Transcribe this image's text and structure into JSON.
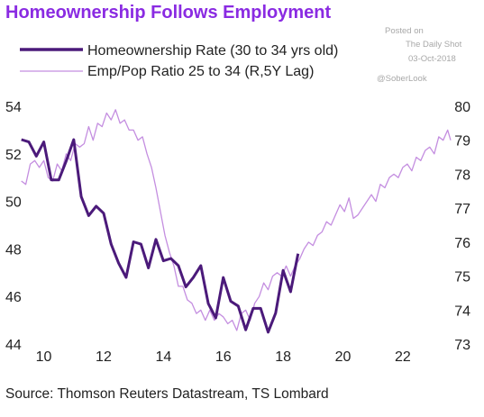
{
  "chart_data": {
    "type": "line",
    "title": "Homeownership Follows Employment",
    "source": "Source: Thomson Reuters Datastream, TS Lombard",
    "watermark": [
      "Posted on",
      "The Daily Shot",
      "03-Oct-2018",
      "@SoberLook"
    ],
    "colors": {
      "title": "#8a2be2",
      "primary": "#4b1a7a",
      "secondary": "#c48ee0",
      "text": "#222222"
    },
    "x_ticks": [
      "10",
      "12",
      "14",
      "16",
      "18",
      "20",
      "22"
    ],
    "xlim": [
      2009.2,
      2023.9
    ],
    "left_axis": {
      "ticks": [
        "54",
        "52",
        "50",
        "48",
        "46",
        "44"
      ],
      "ylim": [
        44,
        54
      ]
    },
    "right_axis": {
      "ticks": [
        "80",
        "79",
        "78",
        "77",
        "76",
        "75",
        "74",
        "73"
      ],
      "ylim": [
        73,
        80
      ]
    },
    "series": [
      {
        "name": "Homeownership Rate (30 to 34 yrs old)",
        "axis": "left",
        "x": [
          2009.25,
          2009.5,
          2009.75,
          2010.0,
          2010.25,
          2010.5,
          2010.75,
          2011.0,
          2011.25,
          2011.5,
          2011.75,
          2012.0,
          2012.25,
          2012.5,
          2012.75,
          2013.0,
          2013.25,
          2013.5,
          2013.75,
          2014.0,
          2014.25,
          2014.5,
          2014.75,
          2015.0,
          2015.25,
          2015.5,
          2015.75,
          2016.0,
          2016.25,
          2016.5,
          2016.75,
          2017.0,
          2017.25,
          2017.5,
          2017.75,
          2018.0,
          2018.25,
          2018.5
        ],
        "values": [
          52.6,
          52.5,
          51.9,
          52.5,
          50.9,
          50.9,
          51.7,
          52.6,
          50.2,
          49.4,
          49.8,
          49.5,
          48.2,
          47.4,
          46.8,
          48.3,
          48.2,
          47.2,
          48.4,
          47.5,
          47.6,
          47.3,
          46.4,
          46.8,
          47.3,
          45.7,
          45.1,
          46.8,
          45.8,
          45.6,
          44.6,
          45.5,
          45.5,
          44.5,
          45.3,
          47.1,
          46.2,
          47.8
        ]
      },
      {
        "name": "Emp/Pop Ratio 25 to 34 (R,5Y Lag)",
        "axis": "right",
        "x": [
          2009.25,
          2009.4,
          2009.55,
          2009.7,
          2009.85,
          2010.0,
          2010.15,
          2010.3,
          2010.45,
          2010.6,
          2010.75,
          2010.9,
          2011.05,
          2011.2,
          2011.35,
          2011.5,
          2011.65,
          2011.8,
          2011.95,
          2012.1,
          2012.25,
          2012.4,
          2012.55,
          2012.7,
          2012.85,
          2013.0,
          2013.15,
          2013.3,
          2013.45,
          2013.6,
          2013.75,
          2013.9,
          2014.05,
          2014.2,
          2014.35,
          2014.5,
          2014.65,
          2014.8,
          2014.95,
          2015.1,
          2015.25,
          2015.4,
          2015.55,
          2015.7,
          2015.85,
          2016.0,
          2016.15,
          2016.3,
          2016.45,
          2016.6,
          2016.75,
          2016.9,
          2017.05,
          2017.2,
          2017.35,
          2017.5,
          2017.65,
          2017.8,
          2017.95,
          2018.1,
          2018.25,
          2018.4,
          2018.55,
          2018.7,
          2018.85,
          2019.0,
          2019.15,
          2019.3,
          2019.45,
          2019.6,
          2019.75,
          2019.9,
          2020.05,
          2020.2,
          2020.35,
          2020.5,
          2020.65,
          2020.8,
          2020.95,
          2021.1,
          2021.25,
          2021.4,
          2021.55,
          2021.7,
          2021.85,
          2022.0,
          2022.15,
          2022.3,
          2022.45,
          2022.6,
          2022.75,
          2022.9,
          2023.05,
          2023.2,
          2023.35,
          2023.5,
          2023.6
        ],
        "values": [
          77.8,
          77.7,
          78.3,
          78.4,
          78.2,
          78.4,
          77.9,
          77.8,
          78.3,
          78.1,
          78.6,
          78.4,
          78.9,
          78.8,
          78.9,
          79.4,
          79.0,
          79.5,
          79.4,
          79.8,
          79.6,
          79.9,
          79.5,
          79.6,
          79.3,
          79.3,
          79.0,
          79.1,
          78.6,
          78.2,
          77.6,
          76.9,
          76.2,
          75.7,
          75.3,
          74.7,
          74.7,
          74.3,
          74.2,
          73.9,
          74.0,
          73.7,
          74.0,
          73.7,
          73.9,
          73.8,
          73.6,
          73.7,
          73.4,
          73.9,
          74.0,
          73.7,
          74.2,
          74.4,
          74.8,
          74.6,
          75.0,
          75.1,
          75.0,
          75.3,
          75.0,
          75.3,
          75.5,
          75.8,
          76.0,
          75.9,
          76.2,
          76.3,
          76.6,
          76.5,
          76.8,
          77.1,
          76.9,
          77.3,
          76.7,
          76.8,
          77.0,
          77.2,
          77.4,
          77.2,
          77.7,
          77.6,
          77.9,
          78.0,
          77.9,
          78.2,
          78.3,
          78.1,
          78.5,
          78.4,
          78.7,
          78.8,
          78.6,
          79.1,
          79.0,
          79.3,
          79.0
        ]
      }
    ]
  }
}
